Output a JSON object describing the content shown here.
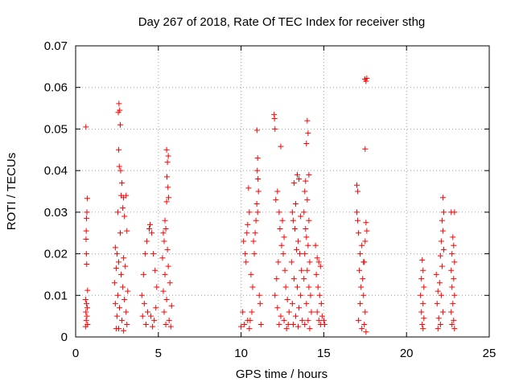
{
  "chart_data": {
    "type": "scatter",
    "title": "Day 267 of 2018, Rate Of TEC Index for receiver sthg",
    "xlabel": "GPS time / hours",
    "ylabel": "ROTI / TECUs",
    "xlim": [
      0,
      25
    ],
    "ylim": [
      0,
      0.07
    ],
    "xticks": [
      "0",
      "5",
      "10",
      "15",
      "20",
      "25"
    ],
    "yticks": [
      "0",
      "0.01",
      "0.02",
      "0.03",
      "0.04",
      "0.05",
      "0.06",
      "0.07"
    ],
    "grid": true,
    "marker": "+",
    "series": [
      {
        "name": "ROTI",
        "color": "#ff0000",
        "points": [
          [
            0.62,
            0.0505
          ],
          [
            0.7,
            0.0333
          ],
          [
            0.68,
            0.03
          ],
          [
            0.66,
            0.0285
          ],
          [
            0.64,
            0.0255
          ],
          [
            0.63,
            0.0235
          ],
          [
            0.65,
            0.02
          ],
          [
            0.67,
            0.0175
          ],
          [
            0.72,
            0.0112
          ],
          [
            0.6,
            0.009
          ],
          [
            0.66,
            0.008
          ],
          [
            0.7,
            0.007
          ],
          [
            0.62,
            0.006
          ],
          [
            0.68,
            0.005
          ],
          [
            0.64,
            0.004
          ],
          [
            0.72,
            0.003
          ],
          [
            0.6,
            0.0025
          ],
          [
            2.62,
            0.0561
          ],
          [
            2.66,
            0.0545
          ],
          [
            2.58,
            0.054
          ],
          [
            2.7,
            0.051
          ],
          [
            2.6,
            0.045
          ],
          [
            2.64,
            0.041
          ],
          [
            2.72,
            0.04
          ],
          [
            2.8,
            0.037
          ],
          [
            2.75,
            0.034
          ],
          [
            2.9,
            0.0335
          ],
          [
            3.05,
            0.034
          ],
          [
            2.85,
            0.031
          ],
          [
            2.55,
            0.03
          ],
          [
            2.95,
            0.029
          ],
          [
            3.1,
            0.0255
          ],
          [
            2.7,
            0.025
          ],
          [
            2.4,
            0.0215
          ],
          [
            2.5,
            0.02
          ],
          [
            2.9,
            0.019
          ],
          [
            2.6,
            0.018
          ],
          [
            3.0,
            0.017
          ],
          [
            2.45,
            0.0165
          ],
          [
            2.75,
            0.015
          ],
          [
            2.35,
            0.013
          ],
          [
            2.85,
            0.012
          ],
          [
            3.15,
            0.011
          ],
          [
            2.55,
            0.01
          ],
          [
            2.95,
            0.009
          ],
          [
            2.4,
            0.008
          ],
          [
            2.65,
            0.007
          ],
          [
            3.05,
            0.006
          ],
          [
            2.5,
            0.005
          ],
          [
            2.8,
            0.004
          ],
          [
            3.1,
            0.003
          ],
          [
            2.6,
            0.002
          ],
          [
            2.9,
            0.0015
          ],
          [
            2.45,
            0.002
          ],
          [
            4.0,
            0.01
          ],
          [
            4.1,
            0.015
          ],
          [
            4.2,
            0.02
          ],
          [
            4.3,
            0.023
          ],
          [
            4.45,
            0.026
          ],
          [
            4.5,
            0.027
          ],
          [
            4.6,
            0.025
          ],
          [
            4.7,
            0.02
          ],
          [
            4.8,
            0.016
          ],
          [
            4.9,
            0.012
          ],
          [
            4.15,
            0.008
          ],
          [
            4.35,
            0.006
          ],
          [
            4.55,
            0.005
          ],
          [
            4.75,
            0.004
          ],
          [
            4.25,
            0.003
          ],
          [
            4.65,
            0.0025
          ],
          [
            4.05,
            0.005
          ],
          [
            4.85,
            0.007
          ],
          [
            5.5,
            0.045
          ],
          [
            5.6,
            0.0435
          ],
          [
            5.55,
            0.042
          ],
          [
            5.52,
            0.0385
          ],
          [
            5.58,
            0.036
          ],
          [
            5.62,
            0.0335
          ],
          [
            5.5,
            0.0325
          ],
          [
            5.4,
            0.028
          ],
          [
            5.45,
            0.026
          ],
          [
            5.3,
            0.025
          ],
          [
            5.35,
            0.023
          ],
          [
            5.55,
            0.021
          ],
          [
            5.25,
            0.019
          ],
          [
            5.6,
            0.017
          ],
          [
            5.4,
            0.015
          ],
          [
            5.7,
            0.013
          ],
          [
            5.3,
            0.011
          ],
          [
            5.5,
            0.009
          ],
          [
            5.8,
            0.0075
          ],
          [
            5.35,
            0.006
          ],
          [
            5.65,
            0.004
          ],
          [
            5.45,
            0.003
          ],
          [
            5.75,
            0.0025
          ],
          [
            10.0,
            0.0025
          ],
          [
            10.2,
            0.003
          ],
          [
            10.4,
            0.004
          ],
          [
            10.1,
            0.006
          ],
          [
            10.3,
            0.018
          ],
          [
            10.25,
            0.02
          ],
          [
            10.15,
            0.023
          ],
          [
            10.35,
            0.025
          ],
          [
            10.4,
            0.027
          ],
          [
            10.5,
            0.03
          ],
          [
            10.45,
            0.0358
          ],
          [
            10.6,
            0.015
          ],
          [
            10.7,
            0.012
          ],
          [
            10.8,
            0.02
          ],
          [
            10.75,
            0.023
          ],
          [
            10.85,
            0.025
          ],
          [
            10.9,
            0.028
          ],
          [
            11.0,
            0.03
          ],
          [
            10.95,
            0.032
          ],
          [
            11.05,
            0.035
          ],
          [
            11.02,
            0.038
          ],
          [
            10.98,
            0.04
          ],
          [
            11.0,
            0.043
          ],
          [
            10.96,
            0.0497
          ],
          [
            11.1,
            0.01
          ],
          [
            11.15,
            0.008
          ],
          [
            10.65,
            0.006
          ],
          [
            10.55,
            0.004
          ],
          [
            11.2,
            0.003
          ],
          [
            10.5,
            0.002
          ],
          [
            12.0,
            0.0535
          ],
          [
            12.02,
            0.0525
          ],
          [
            12.05,
            0.05
          ],
          [
            12.4,
            0.0458
          ],
          [
            12.1,
            0.033
          ],
          [
            12.2,
            0.035
          ],
          [
            12.3,
            0.03
          ],
          [
            12.5,
            0.028
          ],
          [
            12.35,
            0.026
          ],
          [
            12.6,
            0.024
          ],
          [
            12.45,
            0.022
          ],
          [
            12.55,
            0.02
          ],
          [
            12.25,
            0.018
          ],
          [
            12.65,
            0.016
          ],
          [
            12.15,
            0.014
          ],
          [
            12.7,
            0.012
          ],
          [
            12.05,
            0.01
          ],
          [
            12.8,
            0.009
          ],
          [
            12.2,
            0.007
          ],
          [
            12.9,
            0.006
          ],
          [
            12.4,
            0.005
          ],
          [
            12.6,
            0.004
          ],
          [
            12.3,
            0.003
          ],
          [
            12.75,
            0.002
          ],
          [
            12.85,
            0.003
          ],
          [
            13.4,
            0.039
          ],
          [
            13.5,
            0.038
          ],
          [
            13.2,
            0.037
          ],
          [
            13.3,
            0.032
          ],
          [
            13.1,
            0.03
          ],
          [
            13.15,
            0.028
          ],
          [
            13.6,
            0.029
          ],
          [
            13.25,
            0.026
          ],
          [
            13.45,
            0.023
          ],
          [
            13.35,
            0.021
          ],
          [
            13.55,
            0.02
          ],
          [
            13.05,
            0.018
          ],
          [
            13.65,
            0.016
          ],
          [
            13.2,
            0.014
          ],
          [
            13.4,
            0.012
          ],
          [
            13.6,
            0.01
          ],
          [
            13.1,
            0.008
          ],
          [
            13.5,
            0.007
          ],
          [
            13.3,
            0.005
          ],
          [
            13.7,
            0.004
          ],
          [
            13.15,
            0.003
          ],
          [
            13.45,
            0.0025
          ],
          [
            14.0,
            0.052
          ],
          [
            14.05,
            0.049
          ],
          [
            13.95,
            0.0465
          ],
          [
            14.1,
            0.039
          ],
          [
            13.9,
            0.0375
          ],
          [
            13.85,
            0.035
          ],
          [
            14.0,
            0.033
          ],
          [
            13.8,
            0.03
          ],
          [
            14.1,
            0.028
          ],
          [
            13.9,
            0.026
          ],
          [
            13.95,
            0.024
          ],
          [
            14.05,
            0.022
          ],
          [
            13.85,
            0.02
          ],
          [
            14.15,
            0.018
          ],
          [
            14.0,
            0.016
          ],
          [
            13.8,
            0.014
          ],
          [
            14.1,
            0.012
          ],
          [
            14.2,
            0.01
          ],
          [
            13.95,
            0.008
          ],
          [
            14.25,
            0.006
          ],
          [
            14.05,
            0.004
          ],
          [
            13.85,
            0.003
          ],
          [
            14.15,
            0.002
          ],
          [
            14.5,
            0.022
          ],
          [
            14.6,
            0.019
          ],
          [
            14.7,
            0.018
          ],
          [
            14.8,
            0.017
          ],
          [
            14.55,
            0.015
          ],
          [
            14.65,
            0.012
          ],
          [
            14.75,
            0.01
          ],
          [
            14.85,
            0.008
          ],
          [
            14.6,
            0.006
          ],
          [
            14.7,
            0.004
          ],
          [
            14.8,
            0.003
          ],
          [
            14.9,
            0.005
          ],
          [
            15.0,
            0.004
          ],
          [
            15.05,
            0.003
          ],
          [
            17.48,
            0.062
          ],
          [
            17.55,
            0.0615
          ],
          [
            17.6,
            0.0622
          ],
          [
            17.5,
            0.0452
          ],
          [
            17.0,
            0.0365
          ],
          [
            17.05,
            0.035
          ],
          [
            17.0,
            0.03
          ],
          [
            17.05,
            0.028
          ],
          [
            17.1,
            0.025
          ],
          [
            17.2,
            0.02
          ],
          [
            17.3,
            0.022
          ],
          [
            17.4,
            0.018
          ],
          [
            17.55,
            0.0275
          ],
          [
            17.6,
            0.0255
          ],
          [
            17.5,
            0.023
          ],
          [
            17.45,
            0.018
          ],
          [
            17.15,
            0.016
          ],
          [
            17.35,
            0.014
          ],
          [
            17.25,
            0.012
          ],
          [
            17.4,
            0.01
          ],
          [
            17.2,
            0.008
          ],
          [
            17.5,
            0.006
          ],
          [
            17.1,
            0.004
          ],
          [
            17.45,
            0.003
          ],
          [
            17.3,
            0.002
          ],
          [
            17.55,
            0.0012
          ],
          [
            20.95,
            0.0185
          ],
          [
            21.0,
            0.016
          ],
          [
            20.9,
            0.014
          ],
          [
            21.05,
            0.012
          ],
          [
            20.85,
            0.01
          ],
          [
            21.0,
            0.008
          ],
          [
            20.9,
            0.006
          ],
          [
            21.05,
            0.0045
          ],
          [
            20.95,
            0.003
          ],
          [
            21.0,
            0.002
          ],
          [
            22.2,
            0.0335
          ],
          [
            22.25,
            0.03
          ],
          [
            22.15,
            0.028
          ],
          [
            22.2,
            0.0255
          ],
          [
            22.1,
            0.023
          ],
          [
            22.25,
            0.021
          ],
          [
            22.05,
            0.0195
          ],
          [
            22.15,
            0.017
          ],
          [
            21.8,
            0.015
          ],
          [
            22.0,
            0.013
          ],
          [
            21.9,
            0.011
          ],
          [
            22.1,
            0.01
          ],
          [
            21.85,
            0.008
          ],
          [
            22.2,
            0.006
          ],
          [
            21.95,
            0.0045
          ],
          [
            22.05,
            0.003
          ],
          [
            21.9,
            0.002
          ],
          [
            22.7,
            0.03
          ],
          [
            22.9,
            0.03
          ],
          [
            22.8,
            0.024
          ],
          [
            22.85,
            0.022
          ],
          [
            22.75,
            0.02
          ],
          [
            22.9,
            0.018
          ],
          [
            22.7,
            0.016
          ],
          [
            22.85,
            0.014
          ],
          [
            22.75,
            0.012
          ],
          [
            22.9,
            0.01
          ],
          [
            22.8,
            0.008
          ],
          [
            22.7,
            0.006
          ],
          [
            22.85,
            0.004
          ],
          [
            22.75,
            0.003
          ],
          [
            22.9,
            0.002
          ]
        ]
      }
    ]
  }
}
